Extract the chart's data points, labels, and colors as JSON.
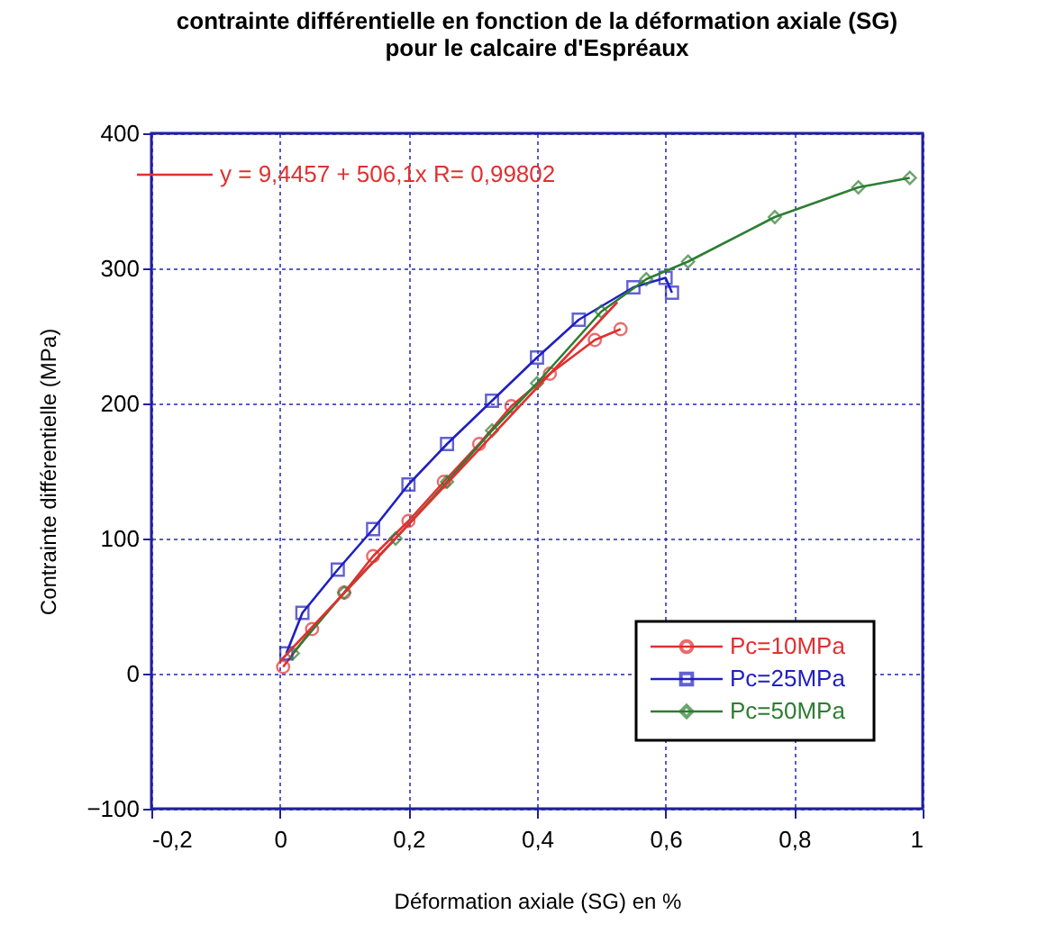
{
  "chart_data": {
    "type": "line",
    "title": "contrainte différentielle en fonction de la déformation axiale (SG)\npour le calcaire d'Espréaux",
    "xlabel": "Déformation axiale (SG) en %",
    "ylabel": "Contrainte différentielle (MPa)",
    "xlim": [
      -0.2,
      1
    ],
    "ylim": [
      -100,
      400
    ],
    "annotations": [
      "y = 9,4457 + 506,1x   R= 0,99802"
    ],
    "xticks": [
      {
        "value": -0.2,
        "label": "-0,2"
      },
      {
        "value": 0,
        "label": "0"
      },
      {
        "value": 0.2,
        "label": "0,2"
      },
      {
        "value": 0.4,
        "label": "0,4"
      },
      {
        "value": 0.6,
        "label": "0,6"
      },
      {
        "value": 0.8,
        "label": "0,8"
      },
      {
        "value": 1,
        "label": "1"
      }
    ],
    "yticks": [
      -100,
      0,
      100,
      200,
      300,
      400
    ],
    "grid": true,
    "legend": "bottom right",
    "series": [
      {
        "name": "Pc=10MPa",
        "color": "#e03030",
        "marker": "circle",
        "x": [
          0.005,
          0.05,
          0.1,
          0.145,
          0.2,
          0.255,
          0.31,
          0.36,
          0.42,
          0.49,
          0.53
        ],
        "values": [
          5,
          33,
          60,
          87,
          113,
          142,
          170,
          198,
          222,
          247,
          255
        ]
      },
      {
        "name": "Pc=25MPa",
        "color": "#2020c0",
        "marker": "square",
        "x": [
          0.01,
          0.035,
          0.09,
          0.145,
          0.2,
          0.26,
          0.33,
          0.4,
          0.465,
          0.55,
          0.6,
          0.61
        ],
        "values": [
          15,
          45,
          77,
          107,
          140,
          170,
          202,
          234,
          262,
          286,
          293,
          282
        ]
      },
      {
        "name": "Pc=50MPa",
        "color": "#2e7d32",
        "marker": "diamond",
        "x": [
          0.02,
          0.1,
          0.18,
          0.26,
          0.33,
          0.4,
          0.5,
          0.57,
          0.635,
          0.77,
          0.9,
          0.98
        ],
        "values": [
          15,
          60,
          100,
          142,
          180,
          215,
          268,
          292,
          305,
          338,
          360,
          367
        ]
      },
      {
        "color": "#e03030",
        "marker": "none",
        "x": [
          0,
          0.525
        ],
        "values": [
          9,
          275
        ]
      }
    ]
  }
}
